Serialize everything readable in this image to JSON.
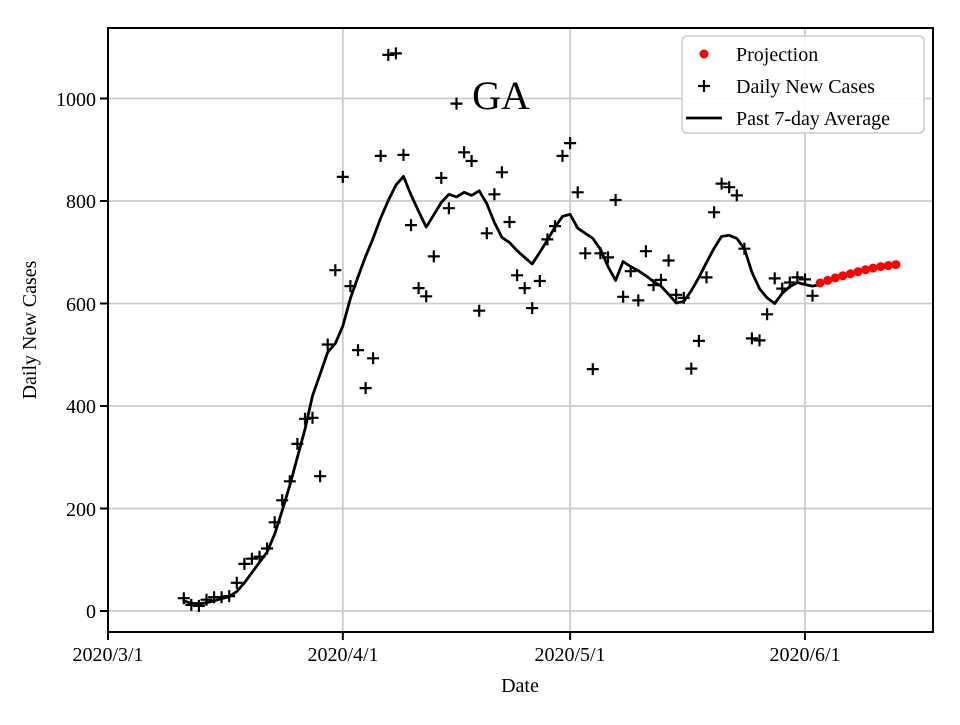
{
  "figure": {
    "background": "#ffffff"
  },
  "chart_data": {
    "type": "line",
    "title": "GA",
    "xlabel": "Date",
    "ylabel": "Daily New Cases",
    "x_tick_labels": [
      "2020/3/1",
      "2020/4/1",
      "2020/5/1",
      "2020/6/1"
    ],
    "y_tick_labels": [
      "0",
      "200",
      "400",
      "600",
      "800",
      "1000"
    ],
    "xlim": [
      "2020/3/1",
      "2020/6/18"
    ],
    "ylim": [
      -40,
      1140
    ],
    "grid": true,
    "grid_color": "#cccccc",
    "legend": {
      "position": "upper right",
      "entries": [
        {
          "label": "Projection",
          "marker": "dot",
          "color": "#ff0000"
        },
        {
          "label": "Daily New Cases",
          "marker": "plus",
          "color": "#000000"
        },
        {
          "label": "Past 7-day Average",
          "marker": "line",
          "color": "#000000"
        }
      ]
    },
    "series": [
      {
        "name": "Past 7-day Average",
        "type": "line",
        "color": "#000000",
        "points": [
          [
            "3/11",
            20
          ],
          [
            "3/12",
            15
          ],
          [
            "3/13",
            14
          ],
          [
            "3/14",
            16
          ],
          [
            "3/15",
            20
          ],
          [
            "3/16",
            24
          ],
          [
            "3/17",
            28
          ],
          [
            "3/18",
            38
          ],
          [
            "3/19",
            55
          ],
          [
            "3/20",
            75
          ],
          [
            "3/21",
            95
          ],
          [
            "3/22",
            115
          ],
          [
            "3/23",
            150
          ],
          [
            "3/24",
            196
          ],
          [
            "3/25",
            245
          ],
          [
            "3/26",
            300
          ],
          [
            "3/27",
            355
          ],
          [
            "3/28",
            420
          ],
          [
            "3/29",
            462
          ],
          [
            "3/30",
            505
          ],
          [
            "3/31",
            522
          ],
          [
            "4/1",
            556
          ],
          [
            "4/2",
            610
          ],
          [
            "4/3",
            652
          ],
          [
            "4/4",
            692
          ],
          [
            "4/5",
            727
          ],
          [
            "4/6",
            767
          ],
          [
            "4/7",
            801
          ],
          [
            "4/8",
            831
          ],
          [
            "4/9",
            848
          ],
          [
            "4/10",
            812
          ],
          [
            "4/11",
            780
          ],
          [
            "4/12",
            749
          ],
          [
            "4/13",
            773
          ],
          [
            "4/14",
            797
          ],
          [
            "4/15",
            813
          ],
          [
            "4/16",
            808
          ],
          [
            "4/17",
            817
          ],
          [
            "4/18",
            811
          ],
          [
            "4/19",
            820
          ],
          [
            "4/20",
            795
          ],
          [
            "4/21",
            758
          ],
          [
            "4/22",
            729
          ],
          [
            "4/23",
            719
          ],
          [
            "4/24",
            703
          ],
          [
            "4/25",
            690
          ],
          [
            "4/26",
            677
          ],
          [
            "4/27",
            700
          ],
          [
            "4/28",
            724
          ],
          [
            "4/29",
            749
          ],
          [
            "4/30",
            770
          ],
          [
            "5/1",
            774
          ],
          [
            "5/2",
            747
          ],
          [
            "5/3",
            737
          ],
          [
            "5/4",
            727
          ],
          [
            "5/5",
            706
          ],
          [
            "5/6",
            672
          ],
          [
            "5/7",
            645
          ],
          [
            "5/8",
            682
          ],
          [
            "5/9",
            672
          ],
          [
            "5/10",
            664
          ],
          [
            "5/11",
            654
          ],
          [
            "5/12",
            643
          ],
          [
            "5/13",
            634
          ],
          [
            "5/14",
            618
          ],
          [
            "5/15",
            601
          ],
          [
            "5/16",
            604
          ],
          [
            "5/17",
            625
          ],
          [
            "5/18",
            651
          ],
          [
            "5/19",
            680
          ],
          [
            "5/20",
            708
          ],
          [
            "5/21",
            731
          ],
          [
            "5/22",
            733
          ],
          [
            "5/23",
            727
          ],
          [
            "5/24",
            707
          ],
          [
            "5/25",
            661
          ],
          [
            "5/26",
            629
          ],
          [
            "5/27",
            611
          ],
          [
            "5/28",
            600
          ],
          [
            "5/29",
            620
          ],
          [
            "5/30",
            633
          ],
          [
            "5/31",
            641
          ],
          [
            "6/1",
            637
          ],
          [
            "6/2",
            634
          ],
          [
            "6/3",
            637
          ]
        ]
      },
      {
        "name": "Daily New Cases",
        "type": "scatter",
        "marker": "plus",
        "color": "#000000",
        "points": [
          [
            "3/11",
            25
          ],
          [
            "3/12",
            12
          ],
          [
            "3/13",
            10
          ],
          [
            "3/14",
            22
          ],
          [
            "3/15",
            27
          ],
          [
            "3/16",
            27
          ],
          [
            "3/17",
            29
          ],
          [
            "3/18",
            55
          ],
          [
            "3/19",
            92
          ],
          [
            "3/20",
            102
          ],
          [
            "3/21",
            106
          ],
          [
            "3/22",
            122
          ],
          [
            "3/23",
            173
          ],
          [
            "3/24",
            216
          ],
          [
            "3/25",
            253
          ],
          [
            "3/26",
            326
          ],
          [
            "3/27",
            375
          ],
          [
            "3/28",
            377
          ],
          [
            "3/29",
            263
          ],
          [
            "3/30",
            520
          ],
          [
            "3/31",
            665
          ],
          [
            "4/1",
            847
          ],
          [
            "4/2",
            634
          ],
          [
            "4/3",
            509
          ],
          [
            "4/4",
            435
          ],
          [
            "4/5",
            493
          ],
          [
            "4/6",
            888
          ],
          [
            "4/7",
            1085
          ],
          [
            "4/8",
            1088
          ],
          [
            "4/9",
            890
          ],
          [
            "4/10",
            753
          ],
          [
            "4/11",
            630
          ],
          [
            "4/12",
            614
          ],
          [
            "4/13",
            692
          ],
          [
            "4/14",
            845
          ],
          [
            "4/15",
            786
          ],
          [
            "4/16",
            990
          ],
          [
            "4/17",
            895
          ],
          [
            "4/18",
            878
          ],
          [
            "4/19",
            586
          ],
          [
            "4/20",
            737
          ],
          [
            "4/21",
            813
          ],
          [
            "4/22",
            856
          ],
          [
            "4/23",
            759
          ],
          [
            "4/24",
            655
          ],
          [
            "4/25",
            630
          ],
          [
            "4/26",
            591
          ],
          [
            "4/27",
            644
          ],
          [
            "4/28",
            725
          ],
          [
            "4/29",
            751
          ],
          [
            "4/30",
            888
          ],
          [
            "5/1",
            913
          ],
          [
            "5/2",
            817
          ],
          [
            "5/3",
            698
          ],
          [
            "5/4",
            472
          ],
          [
            "5/5",
            698
          ],
          [
            "5/6",
            690
          ],
          [
            "5/7",
            802
          ],
          [
            "5/8",
            613
          ],
          [
            "5/9",
            663
          ],
          [
            "5/10",
            606
          ],
          [
            "5/11",
            702
          ],
          [
            "5/12",
            636
          ],
          [
            "5/13",
            646
          ],
          [
            "5/14",
            684
          ],
          [
            "5/15",
            617
          ],
          [
            "5/16",
            611
          ],
          [
            "5/17",
            473
          ],
          [
            "5/18",
            527
          ],
          [
            "5/19",
            651
          ],
          [
            "5/20",
            778
          ],
          [
            "5/21",
            834
          ],
          [
            "5/22",
            827
          ],
          [
            "5/23",
            811
          ],
          [
            "5/24",
            707
          ],
          [
            "5/25",
            532
          ],
          [
            "5/26",
            528
          ],
          [
            "5/27",
            579
          ],
          [
            "5/28",
            649
          ],
          [
            "5/29",
            629
          ],
          [
            "5/30",
            641
          ],
          [
            "5/31",
            651
          ],
          [
            "6/1",
            647
          ],
          [
            "6/2",
            615
          ]
        ]
      },
      {
        "name": "Projection",
        "type": "scatter",
        "marker": "dot",
        "color": "#ff0000",
        "points": [
          [
            "6/3",
            640
          ],
          [
            "6/4",
            645
          ],
          [
            "6/5",
            650
          ],
          [
            "6/6",
            654
          ],
          [
            "6/7",
            658
          ],
          [
            "6/8",
            662
          ],
          [
            "6/9",
            666
          ],
          [
            "6/10",
            669
          ],
          [
            "6/11",
            672
          ],
          [
            "6/12",
            674
          ],
          [
            "6/13",
            676
          ]
        ]
      }
    ]
  }
}
